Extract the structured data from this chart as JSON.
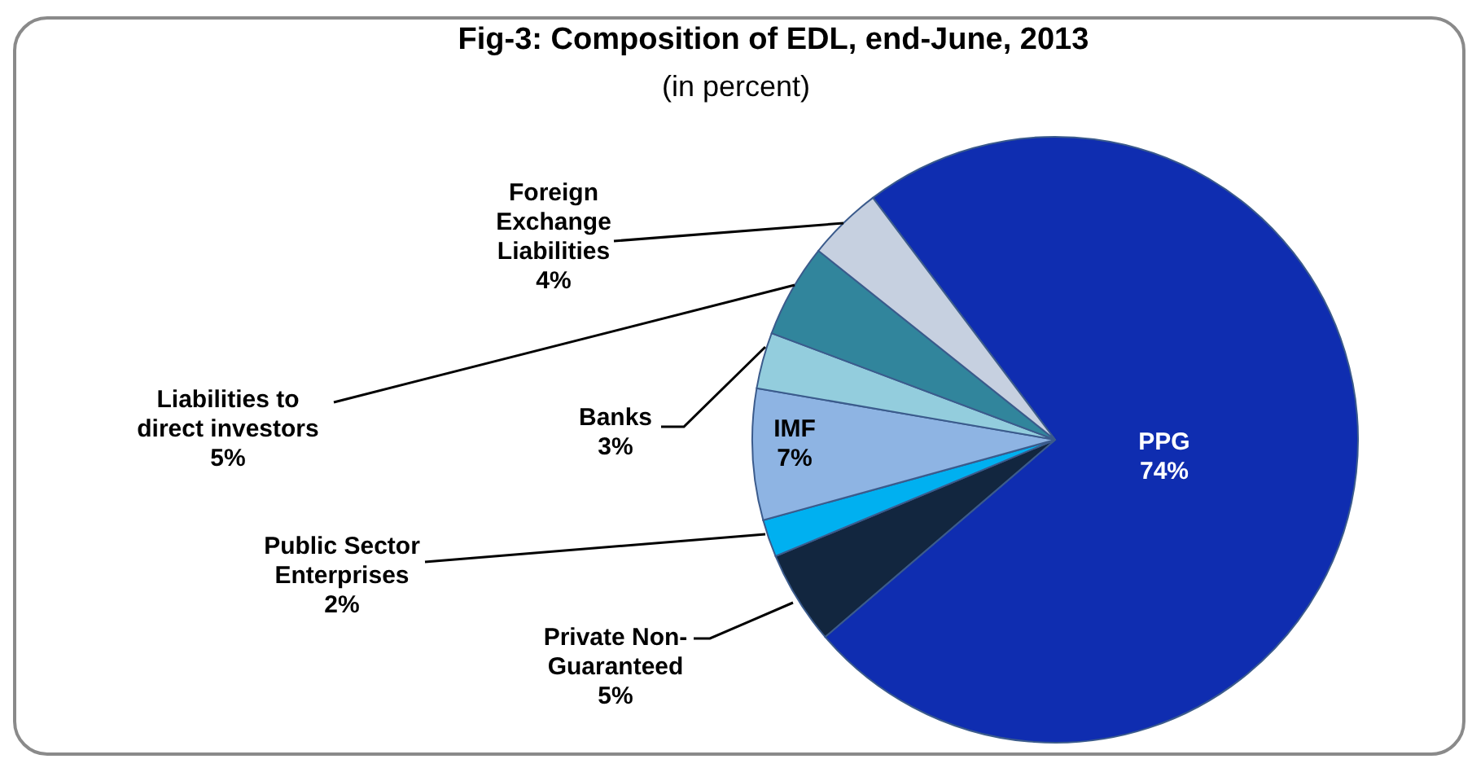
{
  "chart_data": {
    "type": "pie",
    "title": "Fig-3: Composition of EDL, end-June, 2013",
    "subtitle": "(in percent)",
    "categories": [
      "PPG",
      "Private Non-Guaranteed",
      "Public Sector Enterprises",
      "IMF",
      "Banks",
      "Liabilities to direct investors",
      "Foreign Exchange Liabilities"
    ],
    "values": [
      74,
      5,
      2,
      7,
      3,
      5,
      4
    ],
    "value_labels": [
      "74%",
      "5%",
      "2%",
      "7%",
      "3%",
      "5%",
      "4%"
    ],
    "colors": [
      "#0f2db0",
      "#12263f",
      "#00b0f0",
      "#8eb4e3",
      "#93cddd",
      "#31859c",
      "#c6d0e0"
    ]
  }
}
